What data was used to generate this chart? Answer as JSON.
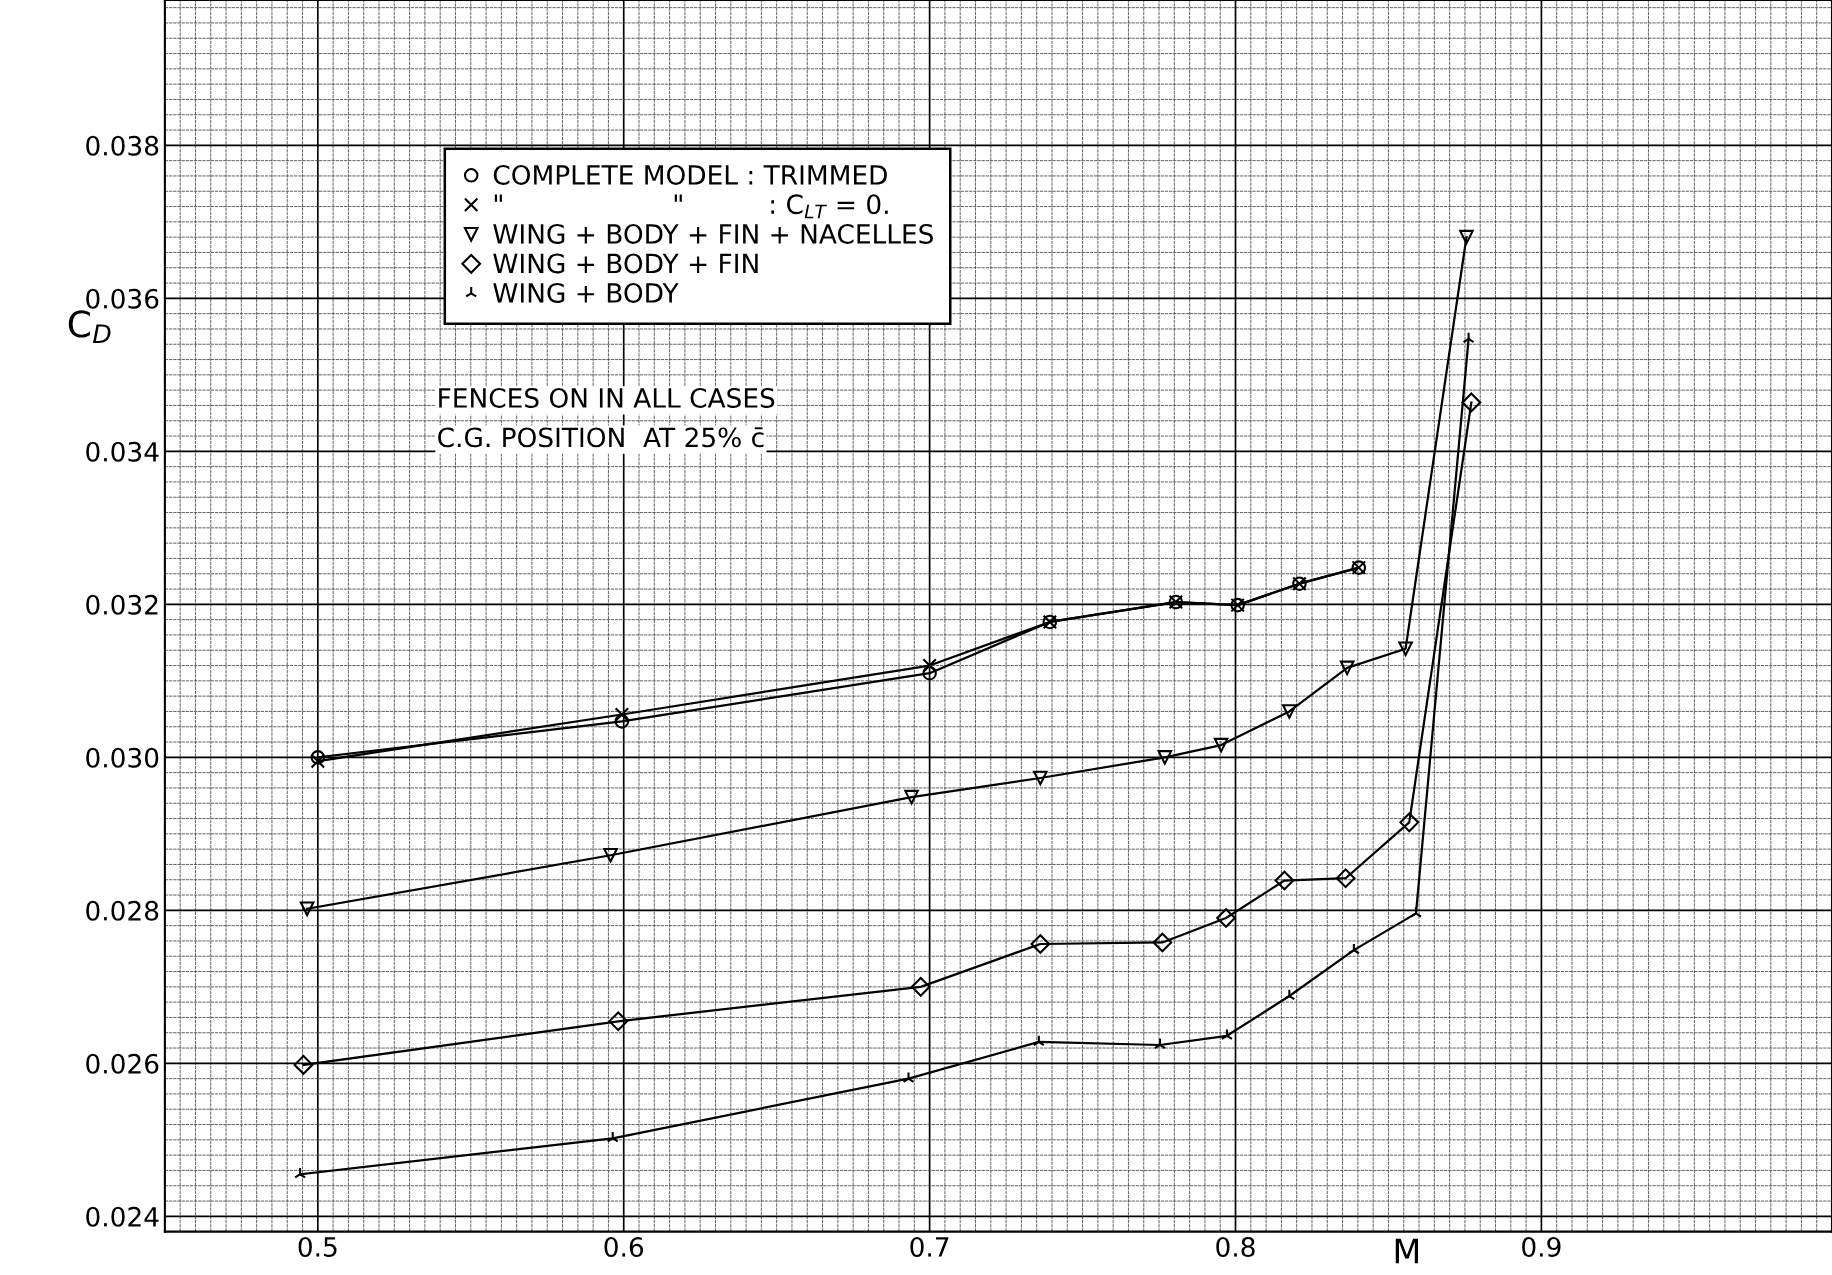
{
  "chart_data": {
    "type": "line",
    "xlabel": "M",
    "ylabel": "C$_{D}$",
    "x": [
      0.5,
      0.5994,
      0.7,
      0.7393,
      0.7805,
      0.8007,
      0.8209,
      0.8403
    ],
    "series": [
      {
        "name": "COMPLETE MODEL : TRIMMED",
        "color": "#000000",
        "marker": "circle",
        "values": [
          0.03,
          0.03047,
          0.0311,
          0.03177,
          0.03203,
          0.03199,
          0.03227,
          0.03248
        ]
      },
      {
        "name": "\"                    \"          : C$_{LT}$ = 0.",
        "color": "#000000",
        "marker": "cross",
        "values": [
          0.02995,
          0.03056,
          0.0312,
          0.03177,
          0.03203,
          0.03199,
          0.03227,
          0.03248
        ]
      },
      {
        "name": "WING + BODY + FIN + NACELLES",
        "color": "#000000",
        "marker": "triangle_down",
        "x": [
          0.4965,
          0.5957,
          0.6941,
          0.7362,
          0.7769,
          0.7953,
          0.8176,
          0.8365,
          0.8556,
          0.8755
        ],
        "values": [
          0.02802,
          0.02872,
          0.02948,
          0.02973,
          0.03,
          0.03016,
          0.0306,
          0.03117,
          0.03142,
          0.0368
        ]
      },
      {
        "name": "WING + BODY + FIN",
        "color": "#000000",
        "marker": "diamond",
        "x": [
          0.4953,
          0.5982,
          0.6971,
          0.7362,
          0.7761,
          0.7969,
          0.816,
          0.836,
          0.8568,
          0.8771
        ],
        "values": [
          0.02598,
          0.02655,
          0.027,
          0.02756,
          0.02758,
          0.0279,
          0.02839,
          0.02842,
          0.02915,
          0.03464
        ]
      },
      {
        "name": "WING + BODY",
        "color": "#000000",
        "marker": "cross",
        "x": [
          0.4942,
          0.5964,
          0.6931,
          0.7357,
          0.7753,
          0.7972,
          0.8176,
          0.8387,
          0.859,
          0.8762
        ],
        "values": [
          0.02455,
          0.02502,
          0.0258,
          0.02628,
          0.02624,
          0.02636,
          0.02688,
          0.02748,
          0.02796,
          0.03547
        ]
      }
    ],
    "annotations": [
      "FENCES ON IN ALL CASES",
      "C.G. POSITION  AT 25% c̄"
    ],
    "xlim": [
      0.45,
      0.995
    ],
    "ylim": [
      0.0238,
      0.0399
    ],
    "xticks": [
      0.5,
      0.6,
      0.7,
      0.8,
      0.9
    ],
    "yticks": [
      0.024,
      0.026,
      0.028,
      {
        "value": 0.03,
        "label": "0.030"
      },
      0.032,
      0.034,
      0.036,
      0.038
    ],
    "grid": true,
    "legend": "top left",
    "line_style": "solid"
  }
}
